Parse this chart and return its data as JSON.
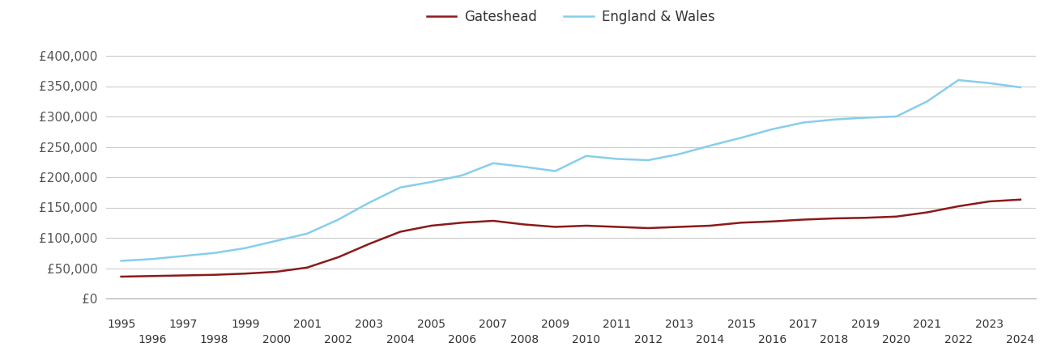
{
  "years": [
    1995,
    1996,
    1997,
    1998,
    1999,
    2000,
    2001,
    2002,
    2003,
    2004,
    2005,
    2006,
    2007,
    2008,
    2009,
    2010,
    2011,
    2012,
    2013,
    2014,
    2015,
    2016,
    2017,
    2018,
    2019,
    2020,
    2021,
    2022,
    2023,
    2024
  ],
  "gateshead": [
    36000,
    37000,
    38000,
    39000,
    41000,
    44000,
    51000,
    68000,
    90000,
    110000,
    120000,
    125000,
    128000,
    122000,
    118000,
    120000,
    118000,
    116000,
    118000,
    120000,
    125000,
    127000,
    130000,
    132000,
    133000,
    135000,
    142000,
    152000,
    160000,
    163000
  ],
  "england_wales": [
    62000,
    65000,
    70000,
    75000,
    83000,
    95000,
    107000,
    130000,
    158000,
    183000,
    192000,
    203000,
    223000,
    217000,
    210000,
    235000,
    230000,
    228000,
    238000,
    252000,
    265000,
    279000,
    290000,
    295000,
    298000,
    300000,
    325000,
    360000,
    355000,
    348000
  ],
  "gateshead_color": "#8B1A1A",
  "england_wales_color": "#87CEEB",
  "background_color": "#ffffff",
  "grid_color": "#cccccc",
  "legend_labels": [
    "Gateshead",
    "England & Wales"
  ],
  "yticks": [
    0,
    50000,
    100000,
    150000,
    200000,
    250000,
    300000,
    350000,
    400000
  ],
  "ytick_labels": [
    "£0",
    "£50,000",
    "£100,000",
    "£150,000",
    "£200,000",
    "£250,000",
    "£300,000",
    "£350,000",
    "£400,000"
  ],
  "ylim": [
    0,
    420000
  ],
  "xlim_start": 1994.5,
  "xlim_end": 2024.5,
  "line_width": 1.8
}
